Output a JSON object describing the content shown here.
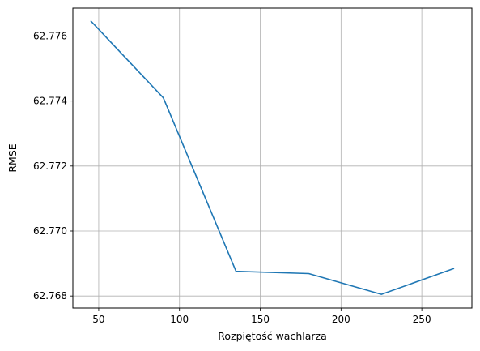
{
  "chart_data": {
    "type": "line",
    "title": "",
    "xlabel": "Rozpiętość wachlarza",
    "ylabel": "RMSE",
    "xlim": [
      34,
      281
    ],
    "ylim": [
      62.76763,
      62.77686
    ],
    "grid": true,
    "legend": "none",
    "x_ticks": [
      "50",
      "100",
      "150",
      "200",
      "250"
    ],
    "x_tick_values": [
      50,
      100,
      150,
      200,
      250
    ],
    "y_ticks": [
      "62.768",
      "62.770",
      "62.772",
      "62.774",
      "62.776"
    ],
    "y_tick_values": [
      62.768,
      62.77,
      62.772,
      62.774,
      62.776
    ],
    "series": [
      {
        "color": "#1f77b4",
        "x": [
          45,
          90,
          135,
          180,
          225,
          270
        ],
        "y": [
          62.77647,
          62.7741,
          62.76876,
          62.76869,
          62.76805,
          62.76885
        ]
      }
    ]
  }
}
